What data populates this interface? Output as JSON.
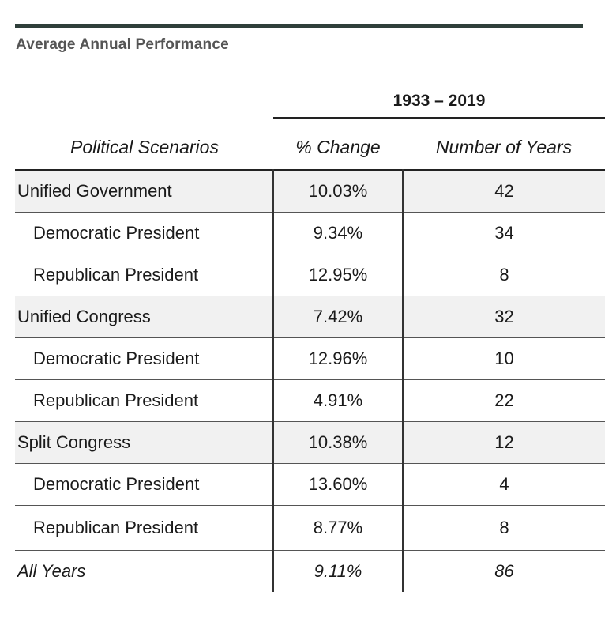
{
  "caption": "Average Annual Performance",
  "period": "1933 – 2019",
  "headers": {
    "scenario": "Political Scenarios",
    "pct_change": "% Change",
    "years": "Number of Years"
  },
  "rows": [
    {
      "scenario": "Unified Government",
      "pct": "10.03%",
      "years": "42",
      "kind": "group"
    },
    {
      "scenario": "Democratic President",
      "pct": "9.34%",
      "years": "34",
      "kind": "sub"
    },
    {
      "scenario": "Republican President",
      "pct": "12.95%",
      "years": "8",
      "kind": "sub"
    },
    {
      "scenario": "Unified Congress",
      "pct": "7.42%",
      "years": "32",
      "kind": "group"
    },
    {
      "scenario": "Democratic President",
      "pct": "12.96%",
      "years": "10",
      "kind": "sub"
    },
    {
      "scenario": "Republican President",
      "pct": "4.91%",
      "years": "22",
      "kind": "sub"
    },
    {
      "scenario": "Split Congress",
      "pct": "10.38%",
      "years": "12",
      "kind": "group"
    },
    {
      "scenario": "Democratic President",
      "pct": "13.60%",
      "years": "4",
      "kind": "sub"
    },
    {
      "scenario": "Republican President",
      "pct": "8.77%",
      "years": "8",
      "kind": "sub"
    },
    {
      "scenario": "All Years",
      "pct": "9.11%",
      "years": "86",
      "kind": "total"
    }
  ]
}
